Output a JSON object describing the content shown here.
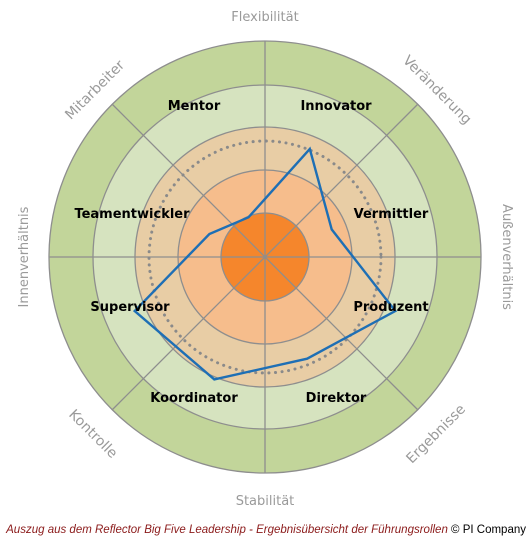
{
  "axes": {
    "top": "Flexibilität",
    "bottom": "Stabilität",
    "left": "Innenverhältnis",
    "right": "Außenverhältnis"
  },
  "quadrants": {
    "top_left": "Mitarbeiter",
    "top_right": "Veränderung",
    "bottom_right": "Ergebnisse",
    "bottom_left": "Kontrolle"
  },
  "roles": [
    "Innovator",
    "Vermittler",
    "Produzent",
    "Direktor",
    "Koordinator",
    "Supervisor",
    "Teamentwickler",
    "Mentor"
  ],
  "profile": {
    "scale_max": 1.0,
    "values": [
      0.68,
      0.42,
      0.82,
      0.64,
      0.77,
      0.82,
      0.35,
      0.25
    ]
  },
  "colors": {
    "outer_ring": "#c2d59a",
    "middle_ring": "#d6e3bf",
    "inner_ring": "#e8cda5",
    "core_ring": "#f6bd8c",
    "center": "#f5862c",
    "profile_line": "#1e6fb5",
    "reference_dots": "#8a8a8a"
  },
  "footer": {
    "note": "Auszug aus dem Reflector Big Five Leadership - Ergebnisübersicht der Führungsrollen",
    "copyright": "© PI Company"
  }
}
